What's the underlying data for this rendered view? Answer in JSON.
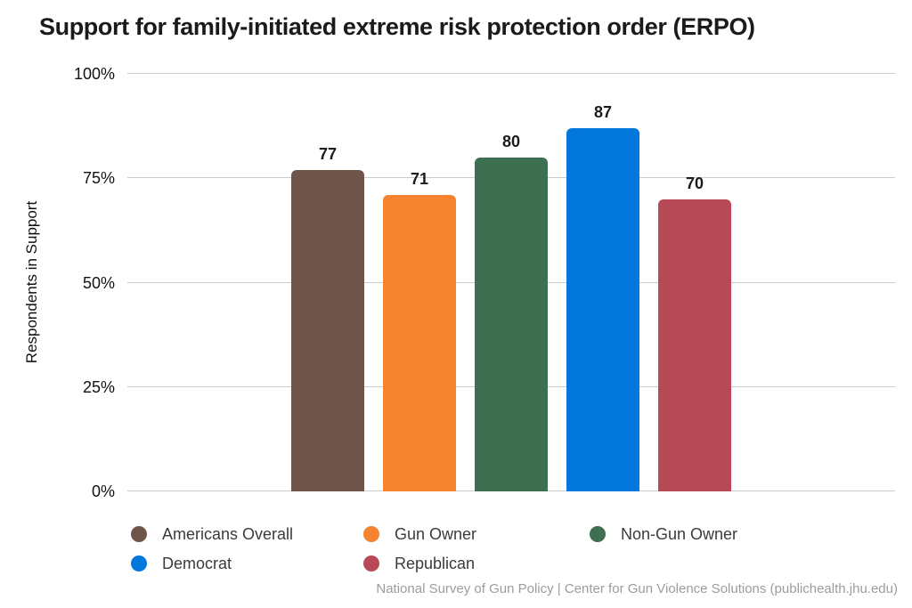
{
  "title": "Support for family-initiated extreme risk protection order (ERPO)",
  "footer": "National Survey of Gun Policy | Center for Gun Violence Solutions (publichealth.jhu.edu)",
  "y_axis": {
    "label": "Respondents in Support",
    "tick_labels": [
      "0%",
      "25%",
      "50%",
      "75%",
      "100%"
    ]
  },
  "chart_data": {
    "type": "bar",
    "title": "Support for family-initiated extreme risk protection order (ERPO)",
    "categories": [
      "Americans Overall",
      "Gun Owner",
      "Non-Gun Owner",
      "Democrat",
      "Republican"
    ],
    "values": [
      77,
      71,
      80,
      87,
      70
    ],
    "colors": [
      "#6F5549",
      "#F5832F",
      "#3E6F51",
      "#0277DC",
      "#B84A58"
    ],
    "xlabel": "",
    "ylabel": "Respondents in Support",
    "ylim": [
      0,
      100
    ],
    "yticks": [
      0,
      25,
      50,
      75,
      100
    ],
    "ytick_suffix": "%",
    "grid": true,
    "gridline_color": "#cccccc",
    "value_labels_shown": true,
    "legend_position": "bottom",
    "source": "National Survey of Gun Policy | Center for Gun Violence Solutions (publichealth.jhu.edu)"
  }
}
